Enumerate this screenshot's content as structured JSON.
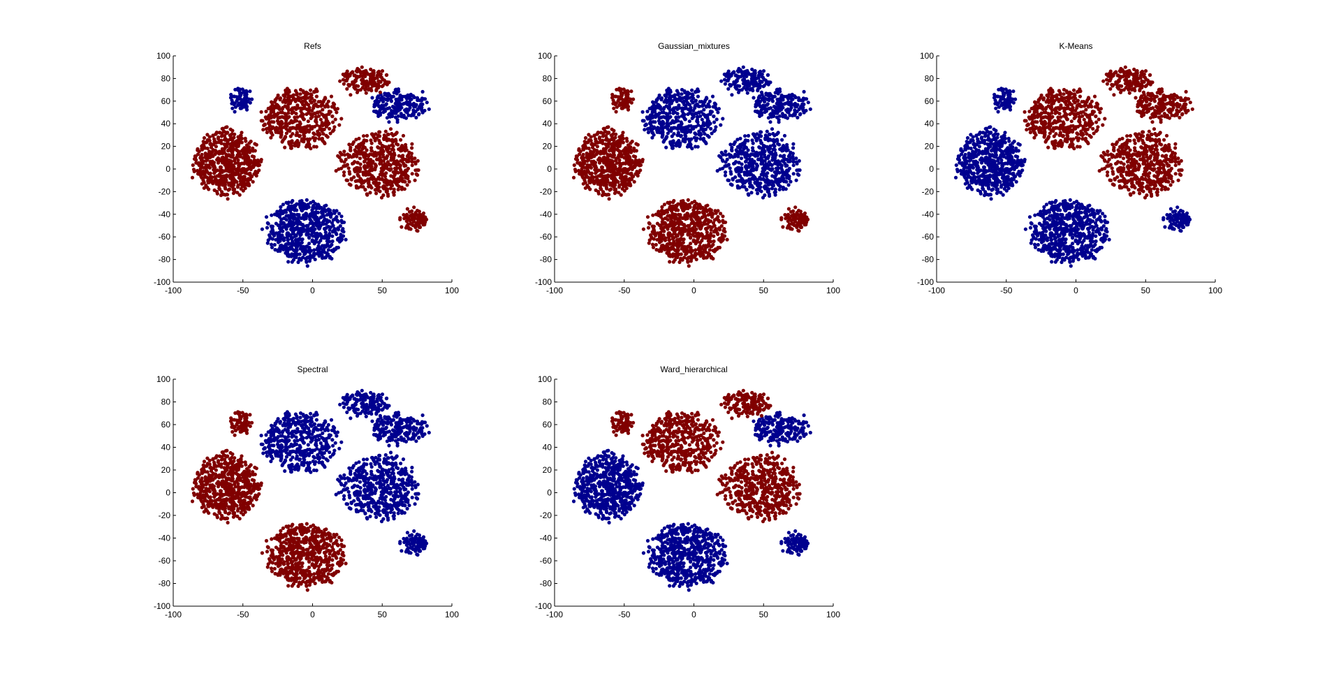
{
  "colors": {
    "blue": "#00008f",
    "red": "#800000",
    "axis": "#000000",
    "background": "#ffffff"
  },
  "chart_data": [
    {
      "type": "scatter",
      "title": "Refs",
      "xlim": [
        -100,
        100
      ],
      "ylim": [
        -100,
        100
      ],
      "xticks": [
        -100,
        -50,
        0,
        50,
        100
      ],
      "yticks": [
        -100,
        -80,
        -60,
        -40,
        -20,
        0,
        20,
        40,
        60,
        80,
        100
      ],
      "grid": false,
      "labels": {
        "A": "red",
        "B": "blue",
        "C": "blue",
        "D": "red",
        "E": "red",
        "F": "blue",
        "G": "red",
        "H": "red"
      }
    },
    {
      "type": "scatter",
      "title": "Gaussian_mixtures",
      "xlim": [
        -100,
        100
      ],
      "ylim": [
        -100,
        100
      ],
      "xticks": [
        -100,
        -50,
        0,
        50,
        100
      ],
      "yticks": [
        -100,
        -80,
        -60,
        -40,
        -20,
        0,
        20,
        40,
        60,
        80,
        100
      ],
      "grid": false,
      "labels": {
        "A": "red",
        "B": "red",
        "C": "red",
        "D": "blue",
        "E": "blue",
        "F": "blue",
        "G": "red",
        "H": "blue"
      }
    },
    {
      "type": "scatter",
      "title": "K-Means",
      "xlim": [
        -100,
        100
      ],
      "ylim": [
        -100,
        100
      ],
      "xticks": [
        -100,
        -50,
        0,
        50,
        100
      ],
      "yticks": [
        -100,
        -80,
        -60,
        -40,
        -20,
        0,
        20,
        40,
        60,
        80,
        100
      ],
      "grid": false,
      "labels": {
        "A": "blue",
        "B": "blue",
        "C": "blue",
        "D": "red",
        "E": "red",
        "F": "red",
        "G": "blue",
        "H": "red"
      }
    },
    {
      "type": "scatter",
      "title": "Spectral",
      "xlim": [
        -100,
        100
      ],
      "ylim": [
        -100,
        100
      ],
      "xticks": [
        -100,
        -50,
        0,
        50,
        100
      ],
      "yticks": [
        -100,
        -80,
        -60,
        -40,
        -20,
        0,
        20,
        40,
        60,
        80,
        100
      ],
      "grid": false,
      "labels": {
        "A": "red",
        "B": "red",
        "C": "red",
        "D": "blue",
        "E": "blue",
        "F": "blue",
        "G": "blue",
        "H": "blue"
      }
    },
    {
      "type": "scatter",
      "title": "Ward_hierarchical",
      "xlim": [
        -100,
        100
      ],
      "ylim": [
        -100,
        100
      ],
      "xticks": [
        -100,
        -50,
        0,
        50,
        100
      ],
      "yticks": [
        -100,
        -80,
        -60,
        -40,
        -20,
        0,
        20,
        40,
        60,
        80,
        100
      ],
      "grid": false,
      "labels": {
        "A": "blue",
        "B": "blue",
        "C": "red",
        "D": "red",
        "E": "red",
        "F": "blue",
        "G": "blue",
        "H": "red"
      }
    }
  ],
  "clusters": [
    {
      "id": "A",
      "center": [
        -62,
        5
      ],
      "radii": [
        26,
        32
      ],
      "n": 600
    },
    {
      "id": "B",
      "center": [
        -5,
        -55
      ],
      "radii": [
        30,
        30
      ],
      "n": 600
    },
    {
      "id": "C",
      "center": [
        -52,
        62
      ],
      "radii": [
        7,
        12
      ],
      "n": 70
    },
    {
      "id": "D",
      "center": [
        -8,
        45
      ],
      "radii": [
        30,
        28
      ],
      "n": 450
    },
    {
      "id": "E",
      "center": [
        48,
        5
      ],
      "radii": [
        30,
        32
      ],
      "n": 500
    },
    {
      "id": "F",
      "center": [
        62,
        57
      ],
      "radii": [
        22,
        15
      ],
      "n": 200
    },
    {
      "id": "G",
      "center": [
        73,
        -45
      ],
      "radii": [
        10,
        10
      ],
      "n": 90
    },
    {
      "id": "H",
      "center": [
        38,
        78
      ],
      "radii": [
        18,
        12
      ],
      "n": 160
    }
  ]
}
